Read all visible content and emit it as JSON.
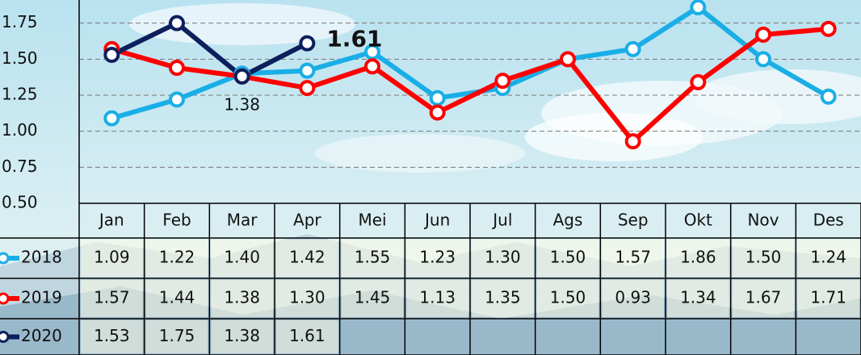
{
  "chart_data": {
    "type": "line",
    "categories": [
      "Jan",
      "Feb",
      "Mar",
      "Apr",
      "Mei",
      "Jun",
      "Jul",
      "Ags",
      "Sep",
      "Okt",
      "Nov",
      "Des"
    ],
    "series": [
      {
        "name": "2018",
        "color": "#1aaee6",
        "values": [
          1.09,
          1.22,
          1.4,
          1.42,
          1.55,
          1.23,
          1.3,
          1.5,
          1.57,
          1.86,
          1.5,
          1.24
        ],
        "value_labels": [
          "1.09",
          "1.22",
          "1.40",
          "1.42",
          "1.55",
          "1.23",
          "1.30",
          "1.50",
          "1.57",
          "1.86",
          "1.50",
          "1.24"
        ]
      },
      {
        "name": "2019",
        "color": "#ff0000",
        "values": [
          1.57,
          1.44,
          1.38,
          1.3,
          1.45,
          1.13,
          1.35,
          1.5,
          0.93,
          1.34,
          1.67,
          1.71
        ],
        "value_labels": [
          "1.57",
          "1.44",
          "1.38",
          "1.30",
          "1.45",
          "1.13",
          "1.35",
          "1.50",
          "0.93",
          "1.34",
          "1.67",
          "1.71"
        ]
      },
      {
        "name": "2020",
        "color": "#0d1f5c",
        "values": [
          1.53,
          1.75,
          1.38,
          1.61,
          null,
          null,
          null,
          null,
          null,
          null,
          null,
          null
        ],
        "value_labels": [
          "1.53",
          "1.75",
          "1.38",
          "1.61",
          null,
          null,
          null,
          null,
          null,
          null,
          null,
          null
        ]
      }
    ],
    "annotations": [
      {
        "text": "1.38"
      },
      {
        "text": "1.61"
      }
    ],
    "ylim": [
      0.5,
      2.0
    ],
    "yticks": [
      {
        "value": 0.5,
        "label": "0.50"
      },
      {
        "value": 0.75,
        "label": "0.75"
      },
      {
        "value": 1.0,
        "label": "1.00"
      },
      {
        "value": 1.25,
        "label": "1.25"
      },
      {
        "value": 1.5,
        "label": "1.50"
      },
      {
        "value": 1.75,
        "label": "1.75"
      }
    ],
    "grid": true
  }
}
